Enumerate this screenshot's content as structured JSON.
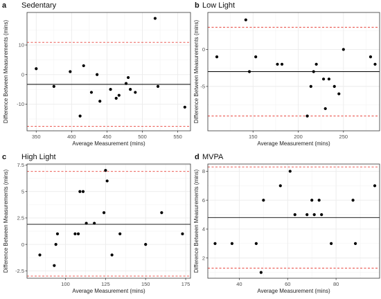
{
  "colors": {
    "limit_line": "#e8423a",
    "mean_line": "#000000",
    "point": "#000000",
    "grid": "#ebebeb",
    "border": "#333333"
  },
  "chart_data": [
    {
      "letter": "a",
      "title": "Sedentary",
      "type": "scatter",
      "xlabel": "Average Measurement (mins)",
      "ylabel": "Difference Between Measurements (mins)",
      "xlim": [
        337,
        568
      ],
      "ylim": [
        -19,
        21
      ],
      "xticks": [
        350,
        400,
        450,
        500,
        550
      ],
      "yticks": [
        -10,
        0,
        10
      ],
      "mean_difference": -3.3,
      "upper_limit": 10.9,
      "lower_limit": -17.5,
      "points": [
        {
          "x": 350,
          "y": 2
        },
        {
          "x": 375,
          "y": -4
        },
        {
          "x": 398,
          "y": 1
        },
        {
          "x": 412,
          "y": -14
        },
        {
          "x": 417,
          "y": 3
        },
        {
          "x": 428,
          "y": -6
        },
        {
          "x": 436,
          "y": 0
        },
        {
          "x": 440,
          "y": -9
        },
        {
          "x": 455,
          "y": -5
        },
        {
          "x": 463,
          "y": -8
        },
        {
          "x": 467,
          "y": -7
        },
        {
          "x": 477,
          "y": -3
        },
        {
          "x": 480,
          "y": -1
        },
        {
          "x": 483,
          "y": -5
        },
        {
          "x": 490,
          "y": -6
        },
        {
          "x": 518,
          "y": 19
        },
        {
          "x": 522,
          "y": -4
        },
        {
          "x": 560,
          "y": -11
        }
      ]
    },
    {
      "letter": "b",
      "title": "Low Light",
      "type": "scatter",
      "xlabel": "Average Measurement (mins)",
      "ylabel": "Difference Between Measurements (mins)",
      "xlim": [
        100,
        290
      ],
      "ylim": [
        -11,
        5
      ],
      "xticks": [
        150,
        200,
        250
      ],
      "yticks": [
        -5,
        0
      ],
      "mean_difference": -3,
      "upper_limit": 3,
      "lower_limit": -9,
      "points": [
        {
          "x": 110,
          "y": -1
        },
        {
          "x": 142,
          "y": 4
        },
        {
          "x": 146,
          "y": -3
        },
        {
          "x": 153,
          "y": -1
        },
        {
          "x": 177,
          "y": -2
        },
        {
          "x": 182,
          "y": -2
        },
        {
          "x": 210,
          "y": -9
        },
        {
          "x": 214,
          "y": -5
        },
        {
          "x": 217,
          "y": -3
        },
        {
          "x": 220,
          "y": -2
        },
        {
          "x": 228,
          "y": -4
        },
        {
          "x": 230,
          "y": -8
        },
        {
          "x": 234,
          "y": -4
        },
        {
          "x": 240,
          "y": -5
        },
        {
          "x": 245,
          "y": -6
        },
        {
          "x": 250,
          "y": 0
        },
        {
          "x": 280,
          "y": -1
        },
        {
          "x": 285,
          "y": -2
        }
      ]
    },
    {
      "letter": "c",
      "title": "High Light",
      "type": "scatter",
      "xlabel": "Average Measurement (mins)",
      "ylabel": "Difference Between Measurements (mins)",
      "xlim": [
        76,
        178
      ],
      "ylim": [
        -3.2,
        7.6
      ],
      "xticks": [
        100,
        125,
        150,
        175
      ],
      "yticks": [
        -2.5,
        0,
        2.5,
        5,
        7.5
      ],
      "mean_difference": 1.9,
      "upper_limit": 6.9,
      "lower_limit": -3.0,
      "points": [
        {
          "x": 84,
          "y": -1
        },
        {
          "x": 93,
          "y": -2
        },
        {
          "x": 94,
          "y": 0
        },
        {
          "x": 95,
          "y": 1
        },
        {
          "x": 106,
          "y": 1
        },
        {
          "x": 108,
          "y": 1
        },
        {
          "x": 109,
          "y": 5
        },
        {
          "x": 111,
          "y": 5
        },
        {
          "x": 113,
          "y": 2
        },
        {
          "x": 118,
          "y": 2
        },
        {
          "x": 124,
          "y": 3
        },
        {
          "x": 125,
          "y": 7
        },
        {
          "x": 126,
          "y": 6
        },
        {
          "x": 129,
          "y": -1
        },
        {
          "x": 134,
          "y": 1
        },
        {
          "x": 150,
          "y": 0
        },
        {
          "x": 160,
          "y": 3
        },
        {
          "x": 173,
          "y": 1
        }
      ]
    },
    {
      "letter": "d",
      "title": "MVPA",
      "type": "scatter",
      "xlabel": "Average Measurement (mins)",
      "ylabel": "Difference Between Measurements (mins)",
      "xlim": [
        27,
        98
      ],
      "ylim": [
        0.6,
        8.5
      ],
      "xticks": [
        40,
        60,
        80
      ],
      "yticks": [
        2,
        4,
        6,
        8
      ],
      "mean_difference": 4.8,
      "upper_limit": 8.3,
      "lower_limit": 1.3,
      "points": [
        {
          "x": 30,
          "y": 3
        },
        {
          "x": 37,
          "y": 3
        },
        {
          "x": 47,
          "y": 3
        },
        {
          "x": 49,
          "y": 1
        },
        {
          "x": 50,
          "y": 6
        },
        {
          "x": 57,
          "y": 7
        },
        {
          "x": 61,
          "y": 8
        },
        {
          "x": 63,
          "y": 5
        },
        {
          "x": 68,
          "y": 5
        },
        {
          "x": 70,
          "y": 6
        },
        {
          "x": 71,
          "y": 5
        },
        {
          "x": 73,
          "y": 6
        },
        {
          "x": 74,
          "y": 5
        },
        {
          "x": 78,
          "y": 3
        },
        {
          "x": 87,
          "y": 6
        },
        {
          "x": 88,
          "y": 3
        },
        {
          "x": 96,
          "y": 7
        }
      ]
    }
  ]
}
